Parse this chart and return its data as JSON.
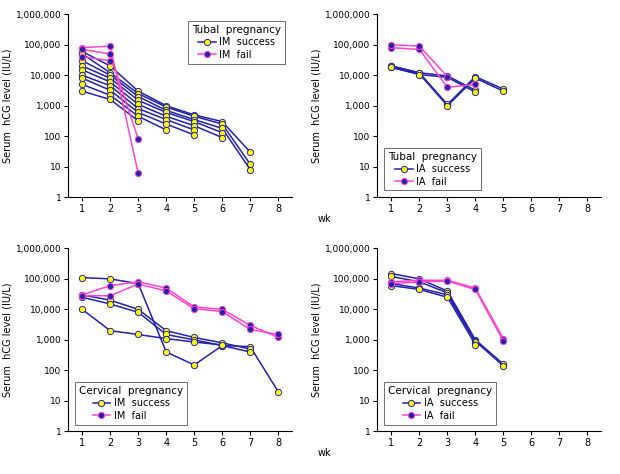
{
  "panels": [
    {
      "title": "Tubal  pregnancy",
      "legend_labels": [
        "IM  success",
        "IM  fail"
      ],
      "success_color": "#2222aa",
      "fail_color": "#ff44cc",
      "success_series": [
        [
          1,
          2,
          3,
          4,
          5,
          6,
          7
        ],
        [
          1,
          2,
          3,
          4,
          5,
          6,
          7
        ],
        [
          1,
          2,
          3,
          4,
          5,
          6,
          7
        ],
        [
          1,
          2,
          3,
          4,
          5,
          6
        ],
        [
          1,
          2,
          3,
          4,
          5,
          6
        ],
        [
          1,
          2,
          3,
          4,
          5
        ],
        [
          1,
          2,
          3,
          4,
          5
        ],
        [
          1,
          2,
          3,
          4
        ],
        [
          1,
          2,
          3
        ]
      ],
      "success_values": [
        [
          60000,
          20000,
          3000,
          1000,
          500,
          300,
          30
        ],
        [
          50000,
          12000,
          2500,
          900,
          450,
          250,
          12
        ],
        [
          30000,
          10000,
          2000,
          700,
          350,
          180,
          8
        ],
        [
          20000,
          8000,
          1500,
          600,
          300,
          130
        ],
        [
          15000,
          6000,
          1100,
          450,
          220,
          90
        ],
        [
          10000,
          4500,
          800,
          350,
          160
        ],
        [
          8000,
          3200,
          600,
          250,
          110
        ],
        [
          5000,
          2200,
          450,
          160
        ],
        [
          3000,
          1600,
          320
        ]
      ],
      "fail_series": [
        [
          1,
          2,
          3
        ],
        [
          1,
          2,
          3
        ],
        [
          1,
          2
        ]
      ],
      "fail_values": [
        [
          80000,
          90000,
          6
        ],
        [
          70000,
          50000,
          80
        ],
        [
          40000,
          30000
        ]
      ],
      "ylim": [
        1,
        1000000
      ],
      "xlim": [
        0.5,
        8.5
      ],
      "xticks": [
        1,
        2,
        3,
        4,
        5,
        6,
        7,
        8
      ],
      "legend_loc": "upper right"
    },
    {
      "title": "Tubal  pregnancy",
      "legend_labels": [
        "IA  success",
        "IA  fail"
      ],
      "success_color": "#2222aa",
      "fail_color": "#ff44cc",
      "success_series": [
        [
          1,
          2,
          3,
          4,
          5
        ],
        [
          1,
          2,
          3,
          4,
          5
        ],
        [
          1,
          2,
          3,
          4
        ],
        [
          1,
          2,
          3,
          4
        ]
      ],
      "success_values": [
        [
          20000,
          12000,
          1100,
          9000,
          3500
        ],
        [
          18000,
          11000,
          1000,
          8000,
          3000
        ],
        [
          20000,
          12000,
          9500,
          3200
        ],
        [
          18000,
          10500,
          8500,
          2800
        ]
      ],
      "fail_series": [
        [
          1,
          2,
          3,
          4
        ],
        [
          1,
          2,
          3
        ]
      ],
      "fail_values": [
        [
          80000,
          70000,
          4000,
          5000
        ],
        [
          100000,
          90000,
          9000
        ]
      ],
      "ylim": [
        1,
        1000000
      ],
      "xlim": [
        0.5,
        8.5
      ],
      "xticks": [
        1,
        2,
        3,
        4,
        5,
        6,
        7,
        8
      ],
      "legend_loc": "lower left"
    },
    {
      "title": "Cervical  pregnancy",
      "legend_labels": [
        "IM  success",
        "IM  fail"
      ],
      "success_color": "#2222aa",
      "fail_color": "#ff44cc",
      "success_series": [
        [
          1,
          2,
          3,
          4,
          5,
          6,
          7,
          8
        ],
        [
          1,
          2,
          3,
          4,
          5,
          6,
          7
        ],
        [
          1,
          2,
          3,
          4,
          5,
          6,
          7
        ],
        [
          1,
          2,
          3,
          4,
          5,
          6
        ]
      ],
      "success_values": [
        [
          110000,
          100000,
          70000,
          400,
          150,
          650,
          600,
          20
        ],
        [
          30000,
          20000,
          10000,
          2000,
          1200,
          800,
          500
        ],
        [
          25000,
          15000,
          8000,
          1500,
          1000,
          650,
          400
        ],
        [
          10000,
          2000,
          1500,
          1100,
          850,
          680
        ]
      ],
      "fail_series": [
        [
          1,
          2,
          3,
          4,
          5,
          6,
          7,
          8
        ],
        [
          1,
          2,
          3,
          4,
          5,
          6,
          7,
          8
        ]
      ],
      "fail_values": [
        [
          30000,
          60000,
          80000,
          50000,
          12000,
          10000,
          3000,
          1200
        ],
        [
          28000,
          28000,
          68000,
          40000,
          10500,
          8500,
          2200,
          1500
        ]
      ],
      "ylim": [
        1,
        1000000
      ],
      "xlim": [
        0.5,
        8.5
      ],
      "xticks": [
        1,
        2,
        3,
        4,
        5,
        6,
        7,
        8
      ],
      "legend_loc": "lower left"
    },
    {
      "title": "Cervical  pregnancy",
      "legend_labels": [
        "IA  success",
        "IA  fail"
      ],
      "success_color": "#2222aa",
      "fail_color": "#ff44cc",
      "success_series": [
        [
          1,
          2,
          3,
          4,
          5
        ],
        [
          1,
          2,
          3,
          4,
          5
        ],
        [
          1,
          2,
          3,
          4
        ],
        [
          1,
          2,
          3,
          4
        ]
      ],
      "success_values": [
        [
          150000,
          100000,
          40000,
          1000,
          160
        ],
        [
          120000,
          80000,
          35000,
          900,
          140
        ],
        [
          70000,
          50000,
          30000,
          850
        ],
        [
          60000,
          45000,
          25000,
          700
        ]
      ],
      "fail_series": [
        [
          1,
          2,
          3,
          4,
          5
        ],
        [
          1,
          2,
          3,
          4,
          5
        ]
      ],
      "fail_values": [
        [
          80000,
          90000,
          90000,
          50000,
          1100
        ],
        [
          70000,
          80000,
          85000,
          45000,
          900
        ]
      ],
      "ylim": [
        1,
        1000000
      ],
      "xlim": [
        0.5,
        8.5
      ],
      "xticks": [
        1,
        2,
        3,
        4,
        5,
        6,
        7,
        8
      ],
      "legend_loc": "lower left"
    }
  ],
  "ylabel": "Serum  hCG level (IU/L)",
  "xlabel_suffix": "wk",
  "ytick_values": [
    1,
    10,
    100,
    1000,
    10000,
    100000,
    1000000
  ],
  "ytick_labels": [
    "1",
    "10",
    "100",
    "1,000",
    "10,000",
    "100,000",
    "1,000,000"
  ],
  "success_marker_facecolor": "#ffff00",
  "fail_marker_facecolor": "#2222aa",
  "linewidth": 1.1,
  "markersize": 4.5
}
